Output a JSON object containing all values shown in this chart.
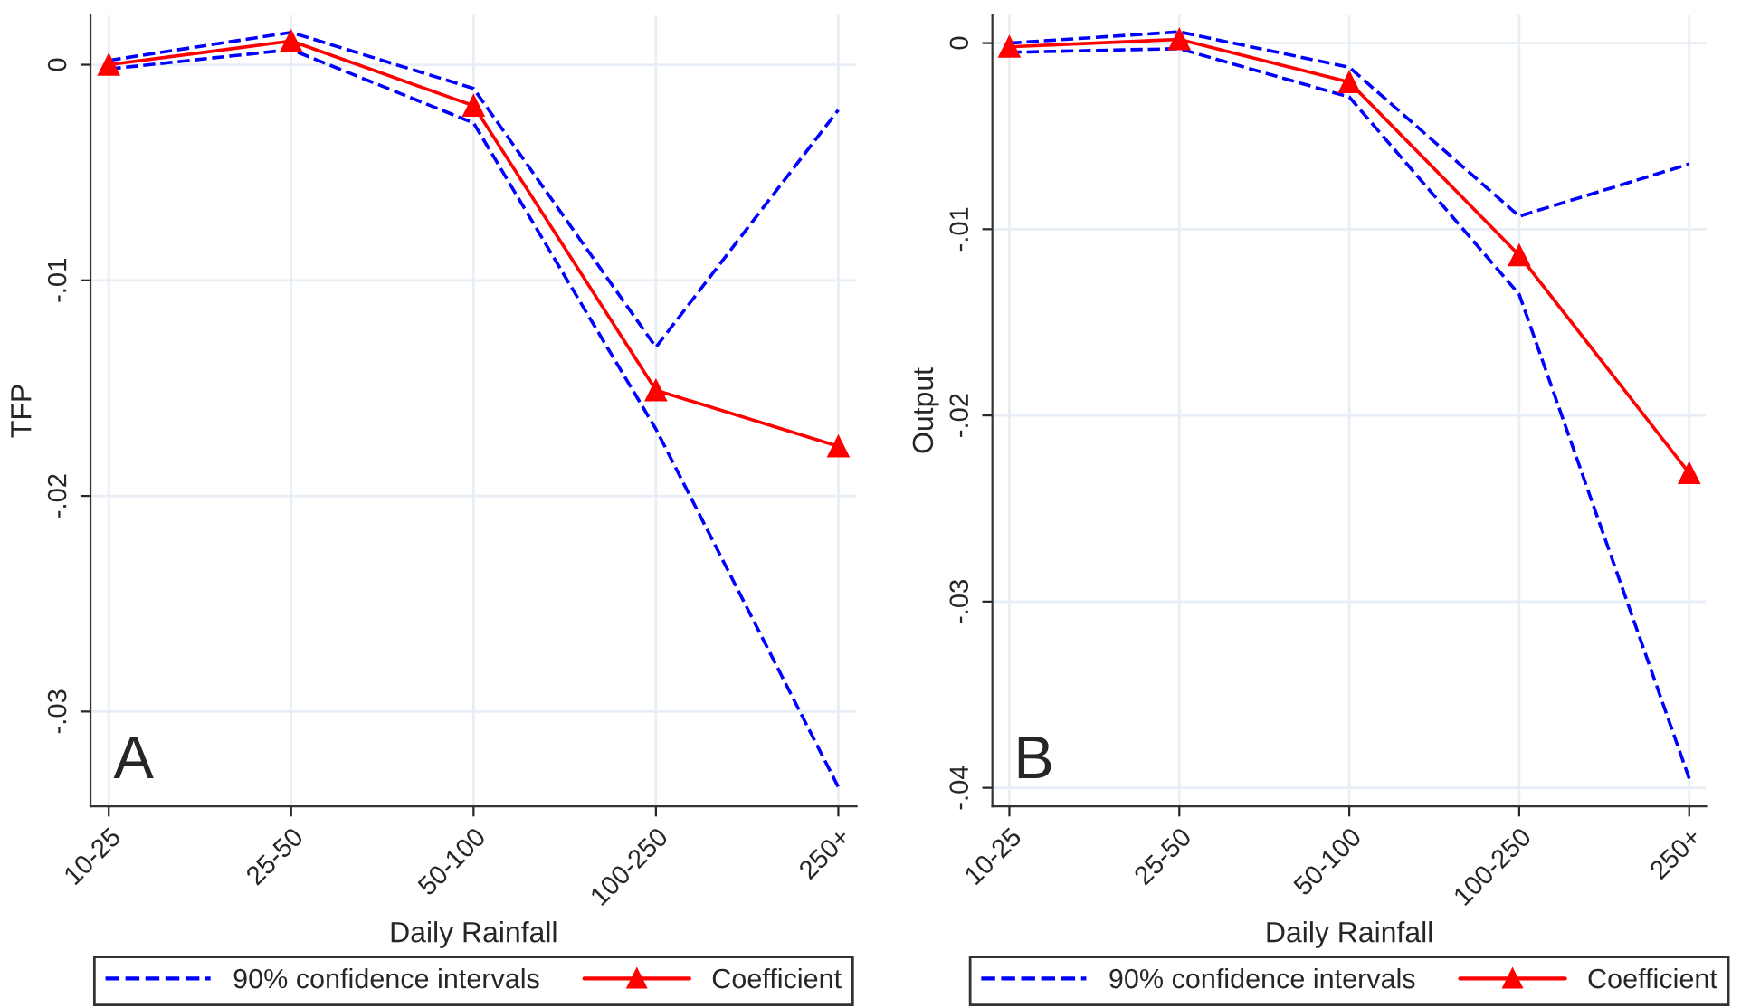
{
  "chart_data": [
    {
      "type": "line",
      "categories": [
        "10-25",
        "25-50",
        "50-100",
        "100-250",
        "250+"
      ],
      "xlabel": "Daily Rainfall",
      "ylabel": "TFP",
      "series": [
        {
          "name": "90% confidence intervals",
          "color": "#0000ff",
          "line_style": "dashed",
          "marker": "none",
          "values": [
            0.0002,
            0.0015,
            -0.0011,
            -0.0131,
            -0.0021
          ]
        },
        {
          "color": "#0000ff",
          "line_style": "dashed",
          "marker": "none",
          "values": [
            -0.0002,
            0.0007,
            -0.0027,
            -0.0169,
            -0.0335
          ]
        },
        {
          "name": "Coefficient",
          "color": "#ff0000",
          "line_style": "solid",
          "marker": "triangle",
          "values": [
            0.0,
            0.0011,
            -0.0019,
            -0.0151,
            -0.0177
          ]
        }
      ],
      "ylim": [
        -0.0344,
        0.0023
      ],
      "yticks": [
        {
          "value": -0.03,
          "label": "-.03"
        },
        {
          "value": -0.02,
          "label": "-.02"
        },
        {
          "value": -0.01,
          "label": "-.01"
        },
        0
      ],
      "grid": true,
      "legend": "bottom",
      "annotations": [
        "A"
      ]
    },
    {
      "type": "line",
      "categories": [
        "10-25",
        "25-50",
        "50-100",
        "100-250",
        "250+"
      ],
      "xlabel": "Daily Rainfall",
      "ylabel": "Output",
      "series": [
        {
          "name": "90% confidence intervals",
          "color": "#0000ff",
          "line_style": "dashed",
          "marker": "none",
          "values": [
            0.0,
            0.0006,
            -0.0013,
            -0.0093,
            -0.0065
          ]
        },
        {
          "color": "#0000ff",
          "line_style": "dashed",
          "marker": "none",
          "values": [
            -0.0005,
            -0.0003,
            -0.0029,
            -0.0135,
            -0.0395
          ]
        },
        {
          "name": "Coefficient",
          "color": "#ff0000",
          "line_style": "solid",
          "marker": "triangle",
          "values": [
            -0.0002,
            0.0002,
            -0.0021,
            -0.0114,
            -0.0231
          ]
        }
      ],
      "ylim": [
        -0.041,
        0.0015
      ],
      "yticks": [
        {
          "value": -0.04,
          "label": "-.04"
        },
        {
          "value": -0.03,
          "label": "-.03"
        },
        {
          "value": -0.02,
          "label": "-.02"
        },
        {
          "value": -0.01,
          "label": "-.01"
        },
        0
      ],
      "grid": true,
      "legend": "bottom",
      "annotations": [
        "B"
      ]
    }
  ]
}
